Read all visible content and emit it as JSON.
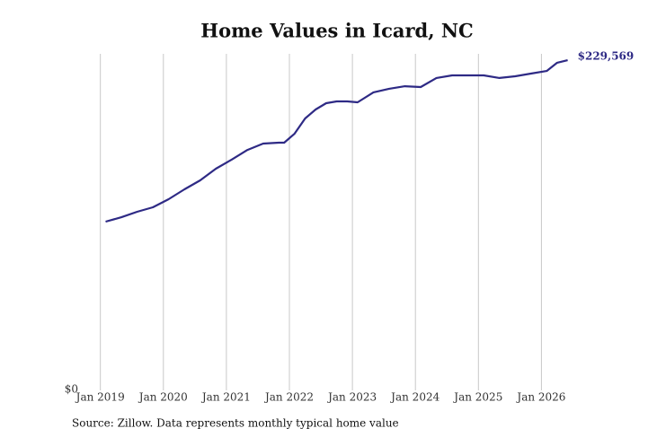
{
  "chart_data": {
    "type": "line",
    "title": "Home Values in Icard, NC",
    "source": "Source: Zillow. Data represents monthly typical home value",
    "x": [
      "2019-02",
      "2019-05",
      "2019-08",
      "2019-11",
      "2020-02",
      "2020-05",
      "2020-08",
      "2020-11",
      "2021-02",
      "2021-05",
      "2021-08",
      "2021-11",
      "2021-12",
      "2022-02",
      "2022-04",
      "2022-06",
      "2022-08",
      "2022-10",
      "2022-12",
      "2023-02",
      "2023-05",
      "2023-08",
      "2023-11",
      "2024-02",
      "2024-05",
      "2024-08",
      "2024-11",
      "2025-02",
      "2025-05",
      "2025-08",
      "2025-11",
      "2026-02",
      "2026-04",
      "2026-06"
    ],
    "series": [
      {
        "name": "Home value",
        "color": "#2e2a85",
        "values": [
          117300,
          120400,
          124200,
          127300,
          132900,
          139800,
          146000,
          154100,
          160400,
          167200,
          171600,
          172200,
          172200,
          178500,
          189100,
          195300,
          199700,
          200900,
          200900,
          200300,
          207200,
          209700,
          211500,
          210900,
          217200,
          219000,
          219000,
          219000,
          217200,
          218400,
          220300,
          222100,
          227800,
          229569
        ],
        "value_labels": [
          null,
          null,
          null,
          null,
          null,
          null,
          null,
          null,
          null,
          null,
          null,
          null,
          null,
          null,
          null,
          null,
          null,
          null,
          null,
          null,
          null,
          null,
          null,
          null,
          null,
          null,
          null,
          null,
          null,
          null,
          null,
          null,
          null,
          "$229,569"
        ]
      }
    ],
    "xlim": [
      "2018-11",
      "2026-10"
    ],
    "xticks": [
      {
        "value": "2019-01",
        "label": "Jan 2019"
      },
      {
        "value": "2020-01",
        "label": "Jan 2020"
      },
      {
        "value": "2021-01",
        "label": "Jan 2021"
      },
      {
        "value": "2022-01",
        "label": "Jan 2022"
      },
      {
        "value": "2023-01",
        "label": "Jan 2023"
      },
      {
        "value": "2024-01",
        "label": "Jan 2024"
      },
      {
        "value": "2025-01",
        "label": "Jan 2025"
      },
      {
        "value": "2026-01",
        "label": "Jan 2026"
      }
    ],
    "ylim": [
      0,
      234000
    ],
    "yticks": [
      {
        "value": 0,
        "label": "$0"
      }
    ],
    "grid": true
  }
}
